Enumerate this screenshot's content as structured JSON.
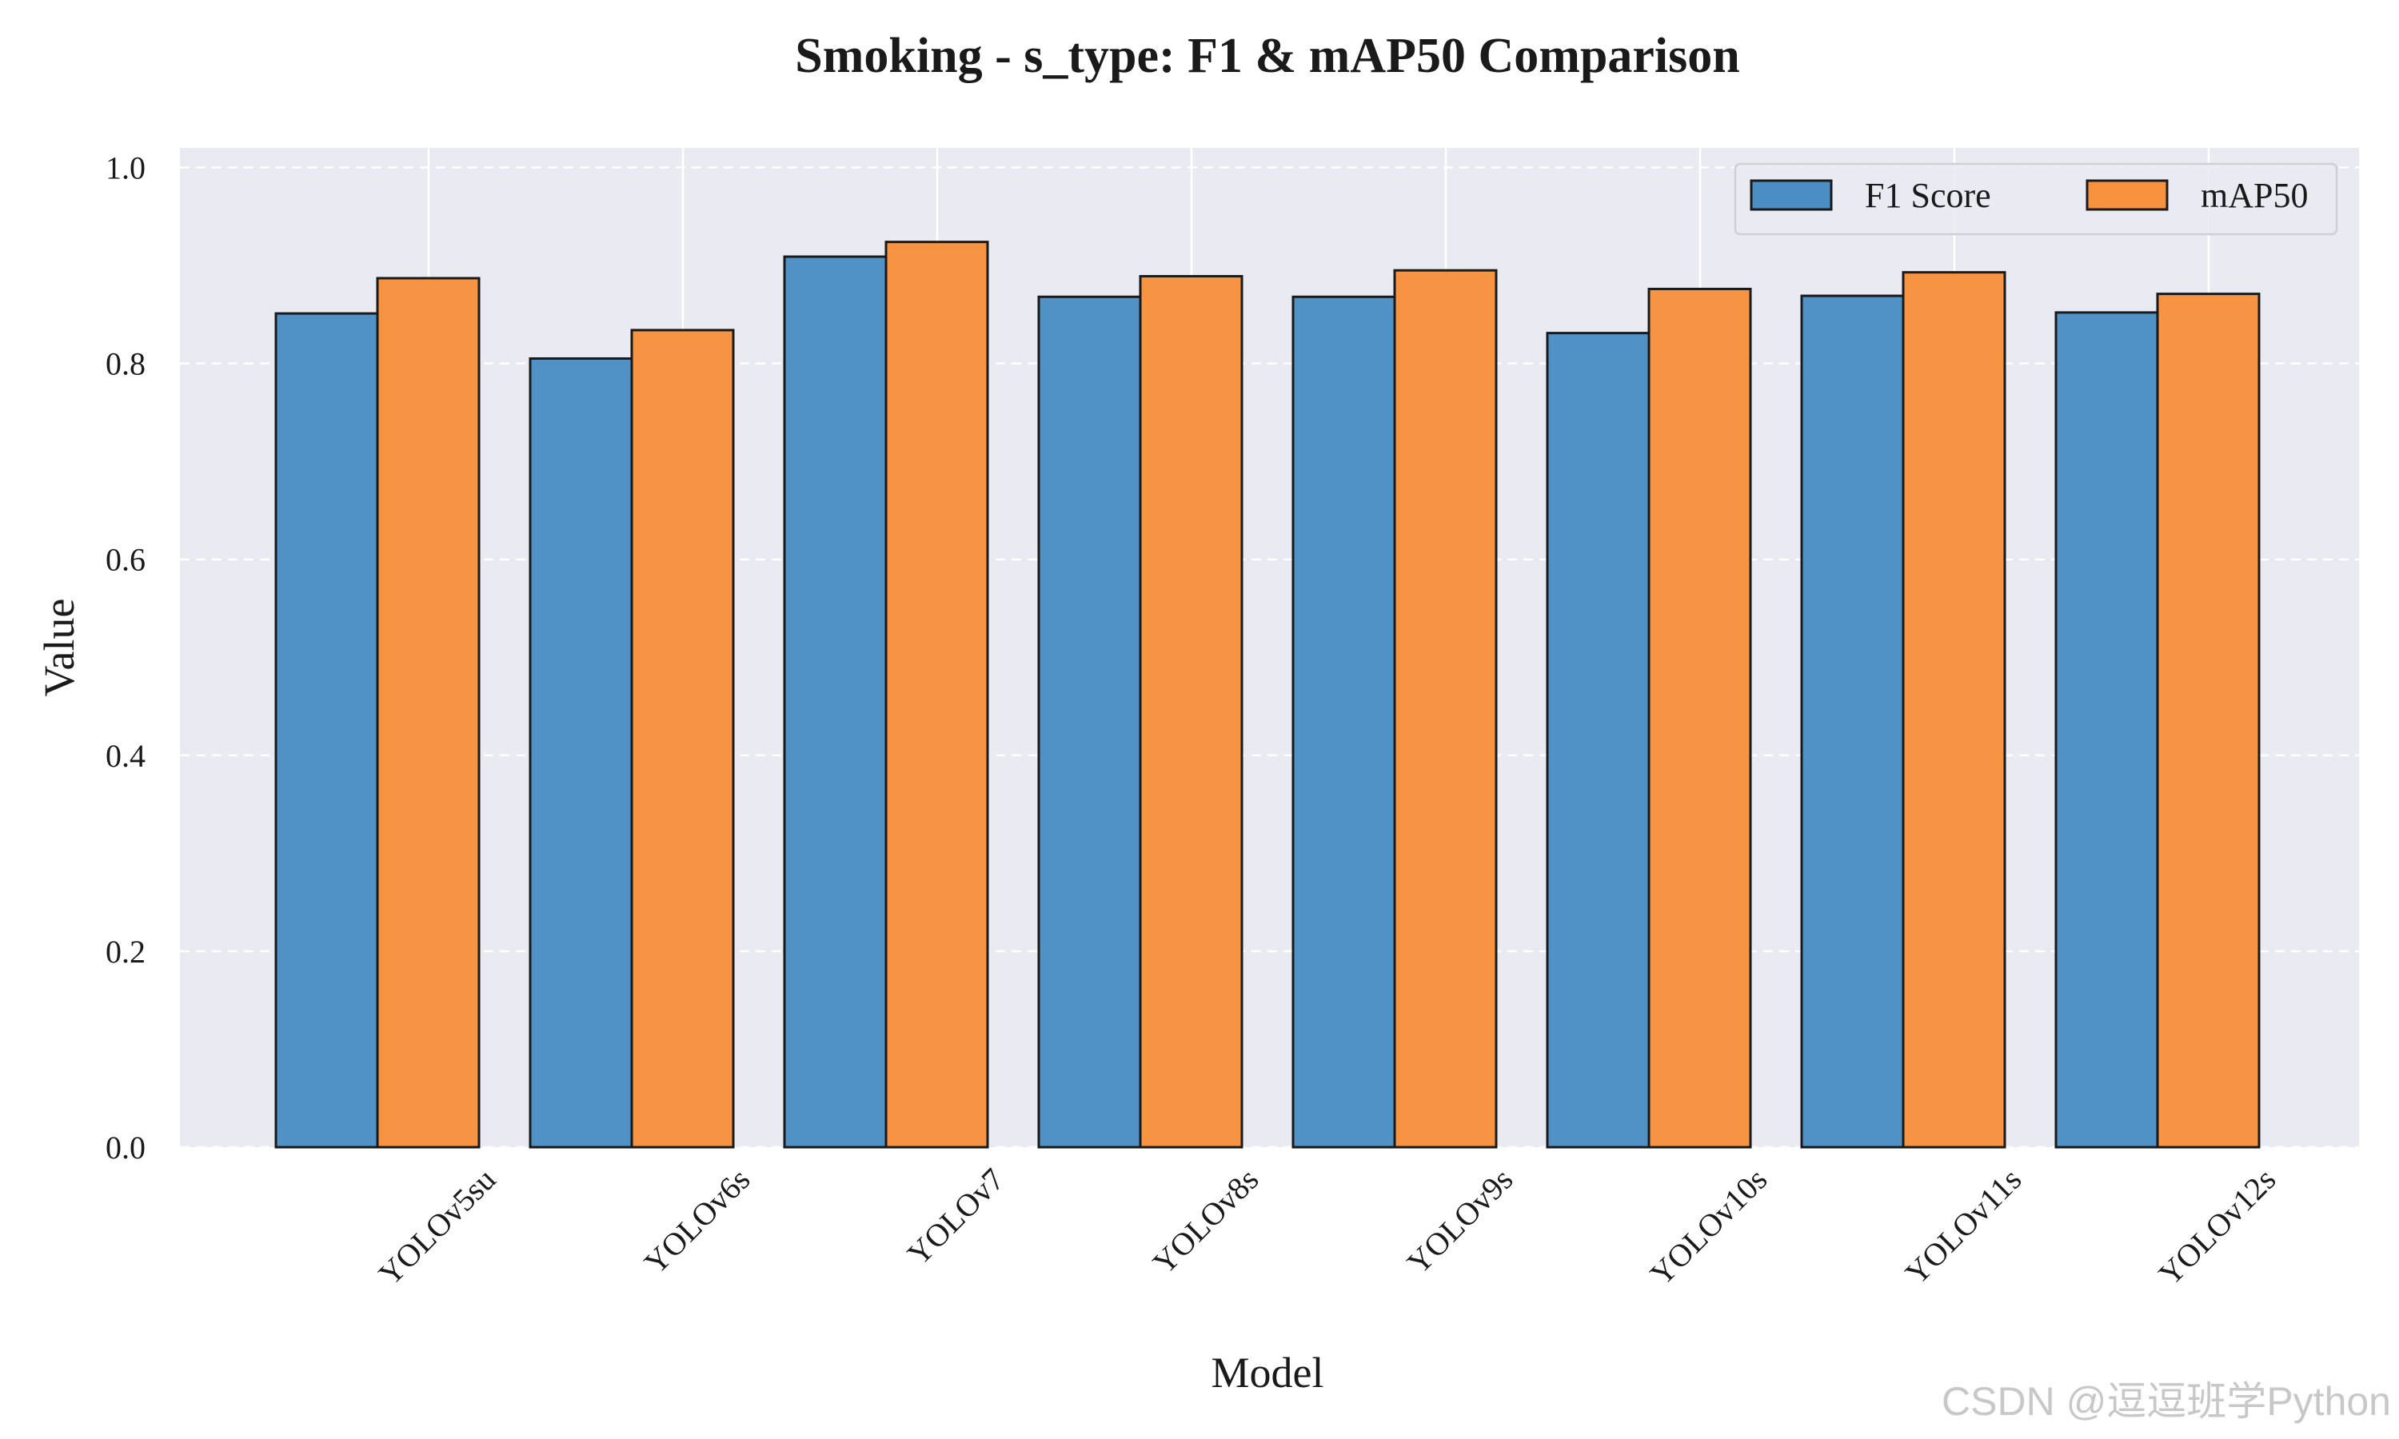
{
  "chart_data": {
    "type": "bar",
    "title": "Smoking - s_type: F1 & mAP50 Comparison",
    "xlabel": "Model",
    "ylabel": "Value",
    "ylim": [
      0,
      1.02
    ],
    "yticks": [
      "0.0",
      "0.2",
      "0.4",
      "0.6",
      "0.8",
      "1.0"
    ],
    "grid": true,
    "legend_position": "top-right",
    "categories": [
      "YOLOv5su",
      "YOLOv6s",
      "YOLOv7",
      "YOLOv8s",
      "YOLOv9s",
      "YOLOv10s",
      "YOLOv11s",
      "YOLOv12s"
    ],
    "series": [
      {
        "name": "F1 Score",
        "color": "#4a8ec3",
        "values": [
          0.851,
          0.805,
          0.909,
          0.868,
          0.868,
          0.831,
          0.869,
          0.852
        ]
      },
      {
        "name": "mAP50",
        "color": "#f7913d",
        "values": [
          0.887,
          0.834,
          0.924,
          0.889,
          0.895,
          0.876,
          0.893,
          0.871
        ]
      }
    ]
  },
  "watermark": "CSDN @逗逗班学Python",
  "style": {
    "plot_background": "#eaeaf2",
    "grid_color": "#ffffff",
    "bar_edge": "#1a1a1a"
  }
}
